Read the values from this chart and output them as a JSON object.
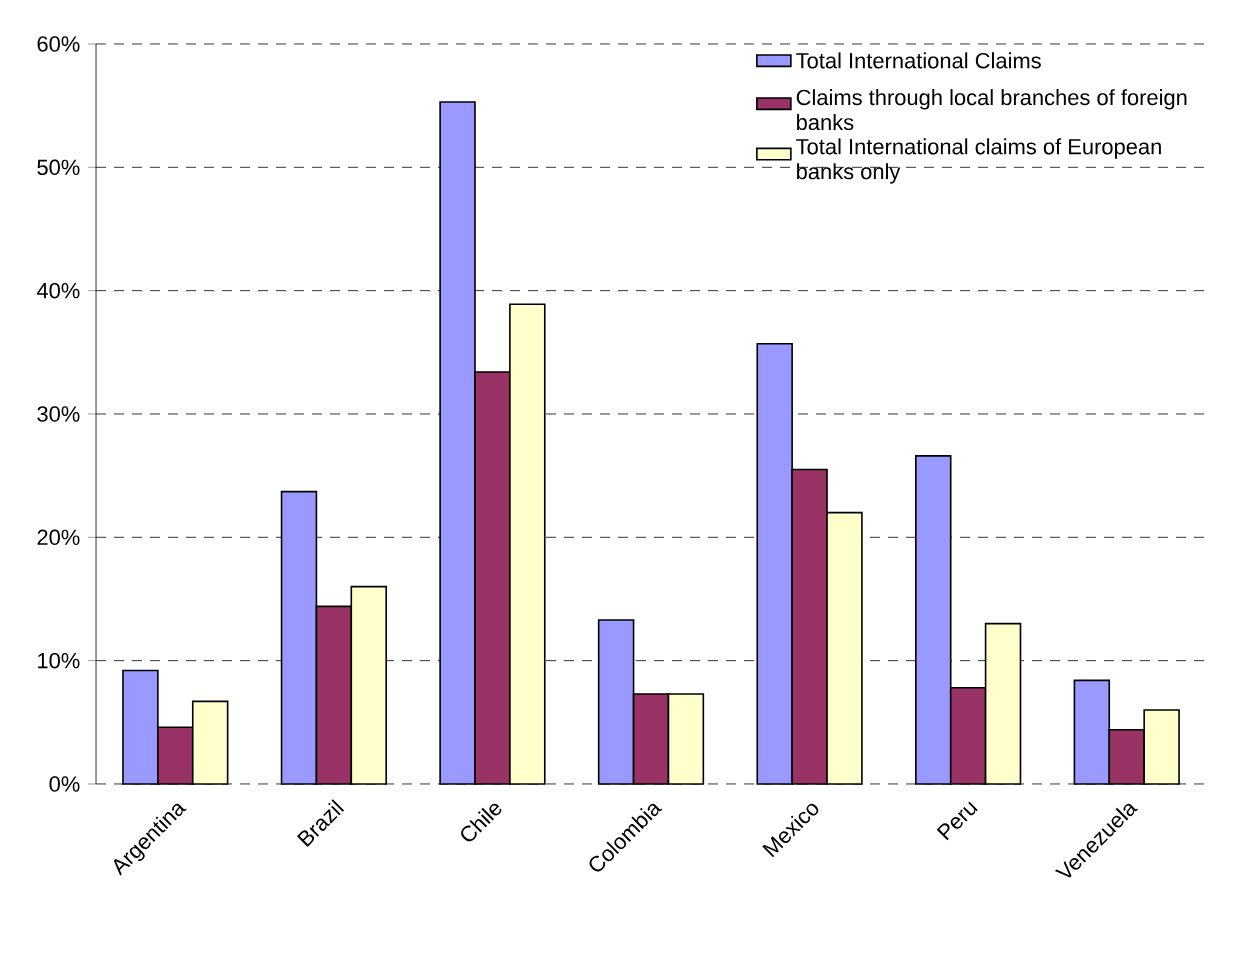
{
  "chart_data": {
    "type": "bar",
    "categories": [
      "Argentina",
      "Brazil",
      "Chile",
      "Colombia",
      "Mexico",
      "Peru",
      "Venezuela"
    ],
    "series": [
      {
        "name": "Total International Claims",
        "color": "#9999ff",
        "values": [
          9.2,
          23.7,
          55.3,
          13.3,
          35.7,
          26.6,
          8.4
        ]
      },
      {
        "name": "Claims through local branches of foreign banks",
        "color": "#993366",
        "values": [
          4.6,
          14.4,
          33.4,
          7.3,
          25.5,
          7.8,
          4.4
        ]
      },
      {
        "name": "Total International claims of European banks only",
        "color": "#ffffcc",
        "values": [
          6.7,
          16.0,
          38.9,
          7.3,
          22.0,
          13.0,
          6.0
        ]
      }
    ],
    "ylim": [
      0,
      60
    ],
    "yticks": [
      {
        "value": 0,
        "label": "0%"
      },
      {
        "value": 10,
        "label": "10%"
      },
      {
        "value": 20,
        "label": "20%"
      },
      {
        "value": 30,
        "label": "30%"
      },
      {
        "value": 40,
        "label": "40%"
      },
      {
        "value": 50,
        "label": "50%"
      },
      {
        "value": 60,
        "label": "60%"
      }
    ],
    "grid": "y",
    "legend": "top right"
  }
}
